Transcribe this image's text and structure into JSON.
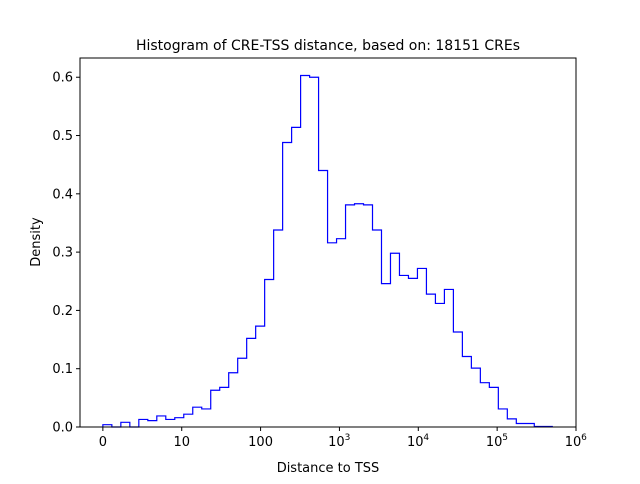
{
  "chart_data": {
    "type": "histogram",
    "histtype": "step",
    "title": "Histogram of CRE-TSS distance, based on: 18151 CREs",
    "xlabel": "Distance to TSS",
    "ylabel": "Density",
    "x_scale": "symlog",
    "x_linthresh": 10,
    "xlim": [
      -2.9,
      1000000
    ],
    "ylim": [
      0,
      0.633
    ],
    "grid": false,
    "line_color": "#0000ff",
    "bin_range": [
      0,
      500000
    ],
    "n_bins": 50,
    "densities": [
      0.004,
      0.0,
      0.008,
      0.0,
      0.013,
      0.011,
      0.019,
      0.013,
      0.016,
      0.022,
      0.034,
      0.031,
      0.063,
      0.068,
      0.093,
      0.118,
      0.152,
      0.173,
      0.253,
      0.338,
      0.488,
      0.514,
      0.603,
      0.6,
      0.44,
      0.316,
      0.323,
      0.381,
      0.383,
      0.381,
      0.338,
      0.246,
      0.298,
      0.26,
      0.255,
      0.272,
      0.228,
      0.212,
      0.236,
      0.163,
      0.121,
      0.101,
      0.076,
      0.068,
      0.031,
      0.014,
      0.006,
      0.006,
      0.001,
      0.001
    ],
    "x_ticks": [
      {
        "value": 0,
        "label": "0",
        "sup": ""
      },
      {
        "value": 10,
        "label": "10",
        "sup": ""
      },
      {
        "value": 100,
        "label": "100",
        "sup": ""
      },
      {
        "value": 1000,
        "label": "10",
        "sup": "3"
      },
      {
        "value": 10000,
        "label": "10",
        "sup": "4"
      },
      {
        "value": 100000,
        "label": "10",
        "sup": "5"
      },
      {
        "value": 1000000,
        "label": "10",
        "sup": "6"
      }
    ],
    "y_ticks": [
      {
        "value": 0.0,
        "label": "0.0"
      },
      {
        "value": 0.1,
        "label": "0.1"
      },
      {
        "value": 0.2,
        "label": "0.2"
      },
      {
        "value": 0.3,
        "label": "0.3"
      },
      {
        "value": 0.4,
        "label": "0.4"
      },
      {
        "value": 0.5,
        "label": "0.5"
      },
      {
        "value": 0.6,
        "label": "0.6"
      }
    ]
  }
}
